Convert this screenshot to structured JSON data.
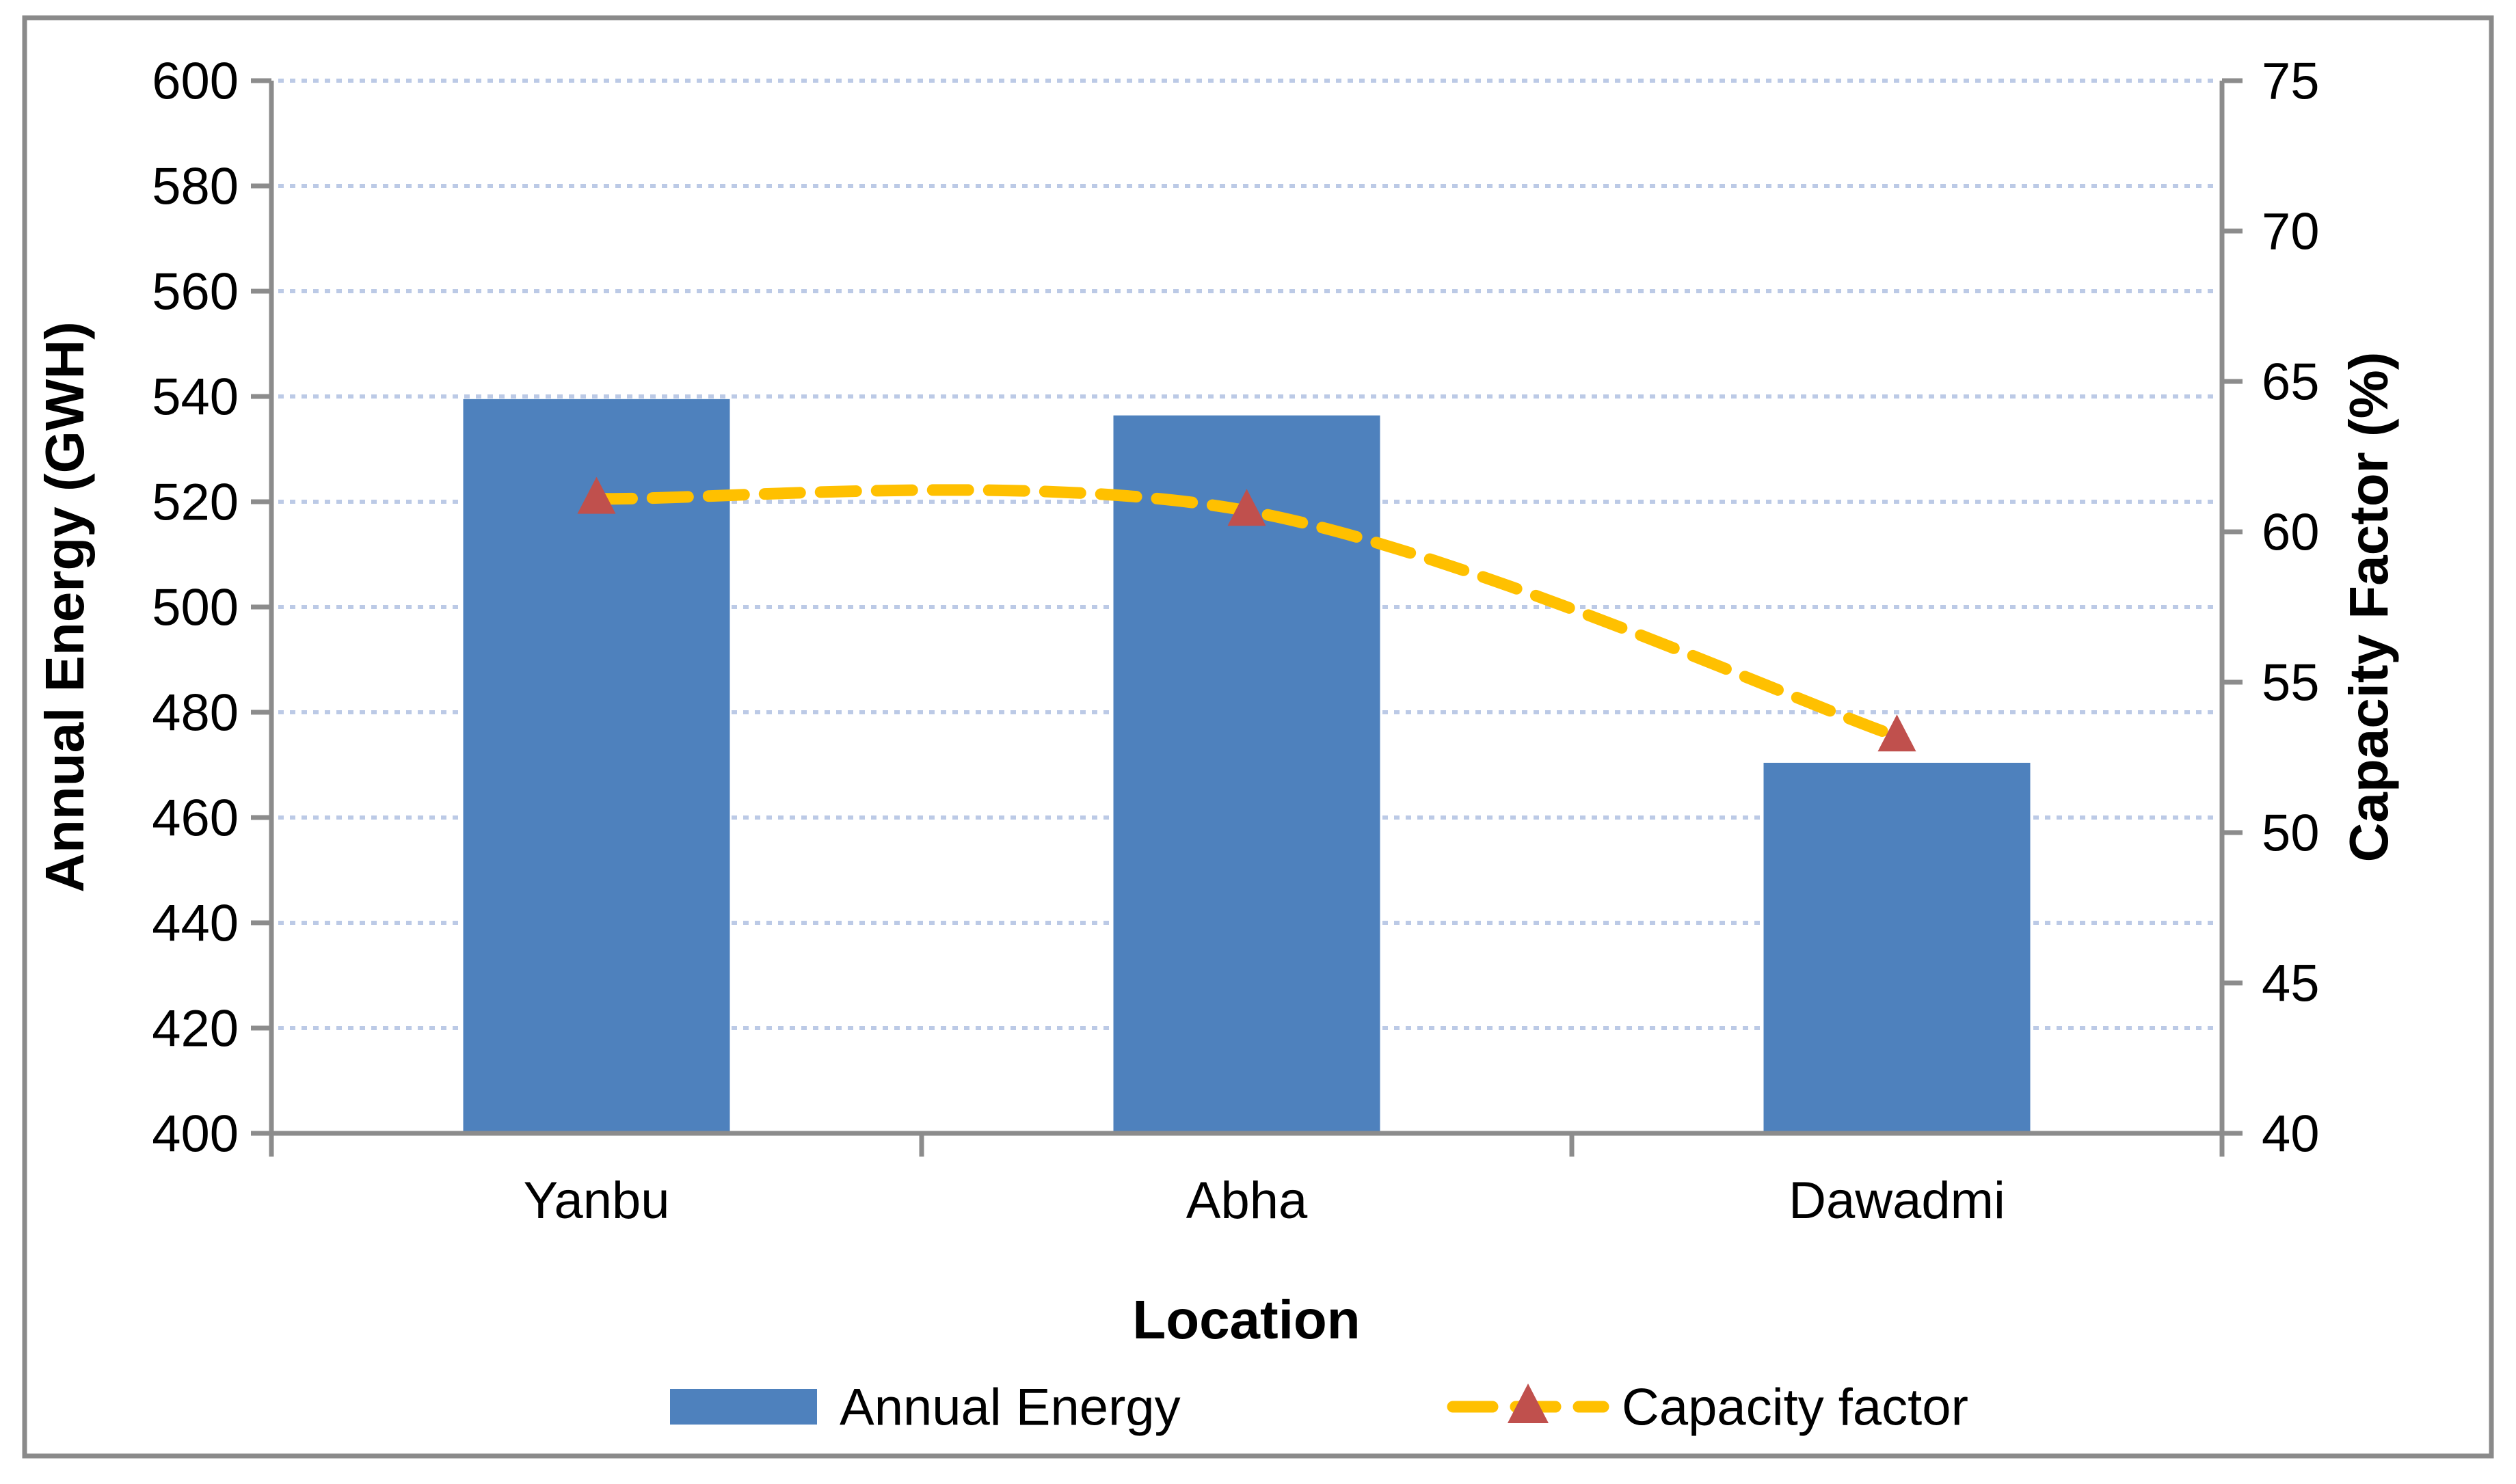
{
  "chart_data": {
    "type": "bar",
    "subtype": "combo-bar-line-dual-axis",
    "categories": [
      "Yanbu",
      "Abha",
      "Dawadmi"
    ],
    "series": [
      {
        "name": "Annual Energy",
        "type": "bar",
        "axis": "left",
        "color": "#4E81BD",
        "values": [
          539.5,
          536.4,
          470.4
        ]
      },
      {
        "name": "Capacity factor",
        "type": "line",
        "axis": "right",
        "color": "#FFC000",
        "marker": "triangle",
        "marker_color": "#C0504D",
        "line_style": "dashed-smooth",
        "values": [
          61.1,
          60.7,
          53.2
        ]
      }
    ],
    "left_axis": {
      "title": "Annual Energy (GWH)",
      "min": 400,
      "max": 600,
      "step": 20,
      "tick_labels": [
        "400",
        "420",
        "440",
        "460",
        "480",
        "500",
        "520",
        "540",
        "560",
        "580",
        "600"
      ]
    },
    "right_axis": {
      "title": "Capacity Factor (%)",
      "min": 40,
      "max": 75,
      "step": 5,
      "tick_labels": [
        "40",
        "45",
        "50",
        "55",
        "60",
        "65",
        "70",
        "75"
      ]
    },
    "x_axis": {
      "title": "Location"
    },
    "legend": {
      "position": "bottom",
      "entries": [
        "Annual Energy",
        "Capacity factor"
      ]
    },
    "grid": {
      "horizontal": true,
      "style": "dotted",
      "color": "#BCCAE6"
    },
    "colors": {
      "bar": "#4E81BD",
      "line": "#FFC000",
      "marker": "#C0504D",
      "gridline": "#BCCAE6",
      "axis": "#8C8C8C",
      "border": "#8A8A8A",
      "text": "#000000"
    }
  }
}
